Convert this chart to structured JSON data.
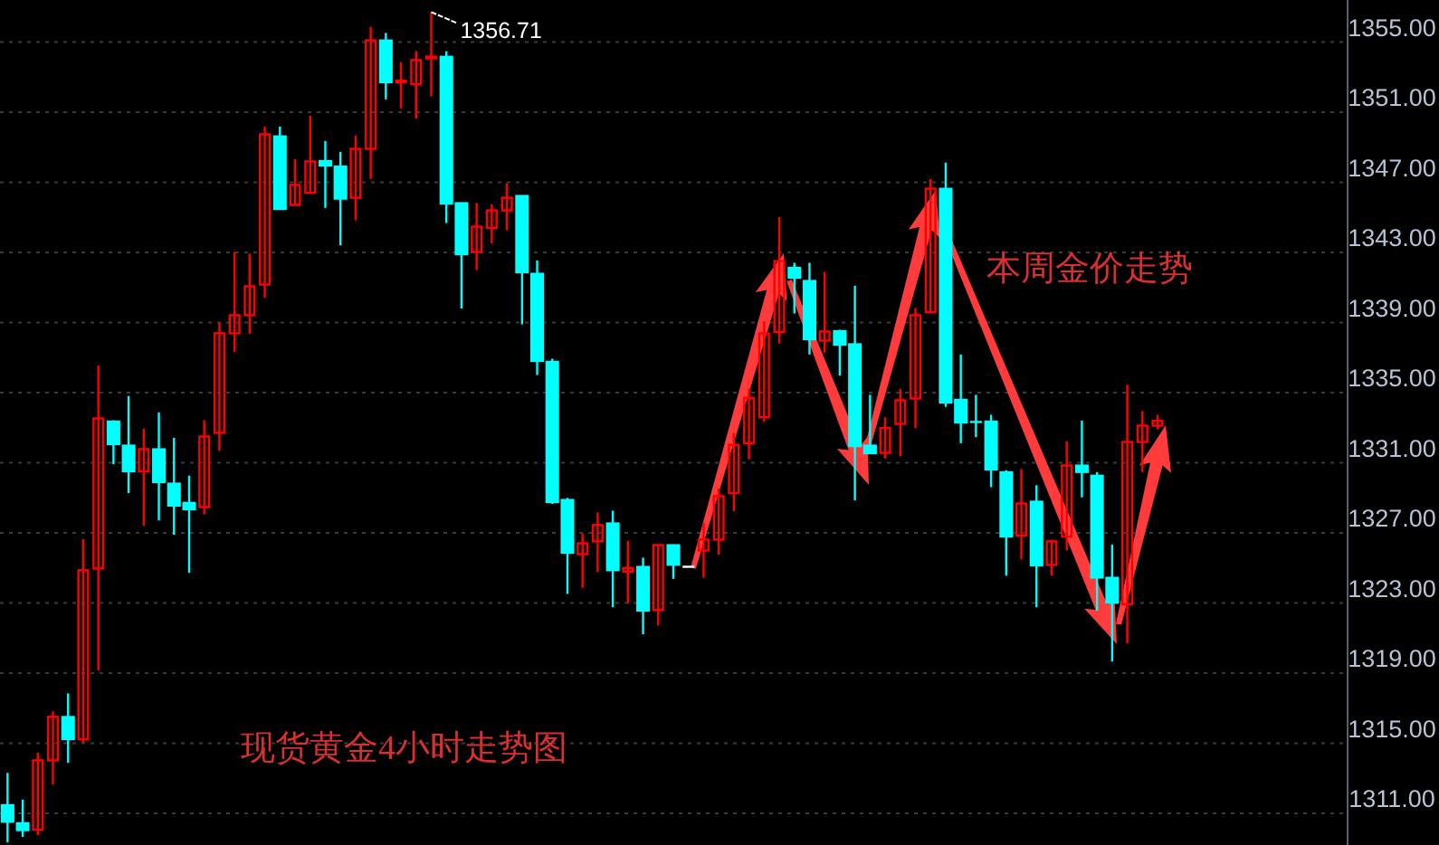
{
  "chart_data": {
    "type": "candlestick",
    "categories": [
      null,
      null,
      null,
      null,
      null,
      null,
      null,
      null,
      null,
      null,
      null,
      null,
      null,
      null,
      null,
      null,
      null,
      null,
      null,
      null,
      null,
      null,
      null,
      null,
      null,
      null,
      null,
      null,
      null,
      null,
      null,
      null,
      null,
      null,
      null,
      null,
      null,
      null,
      null,
      null,
      null,
      null,
      null,
      null,
      null,
      null,
      null,
      null,
      null,
      null,
      null,
      null,
      null,
      null,
      null,
      null,
      null,
      null,
      null,
      null,
      null,
      null,
      null,
      null,
      null,
      null,
      null,
      null,
      null,
      null,
      null,
      null,
      null,
      null,
      null,
      null,
      null,
      null,
      null,
      null,
      null,
      null,
      null,
      null,
      null,
      null,
      null,
      null,
      null
    ],
    "ohlc": [
      [
        1311.48,
        1313.31,
        1309.35,
        1310.52
      ],
      [
        1310.45,
        1311.79,
        1309.66,
        1310.04
      ],
      [
        1310.07,
        1314.48,
        1309.76,
        1314.03
      ],
      [
        1314.03,
        1316.82,
        1312.65,
        1316.51
      ],
      [
        1316.51,
        1317.85,
        1313.89,
        1315.23
      ],
      [
        1315.23,
        1326.65,
        1315.03,
        1324.87
      ],
      [
        1324.97,
        1336.56,
        1319.16,
        1333.53
      ],
      [
        1333.36,
        1333.43,
        1330.92,
        1332.06
      ],
      [
        1331.99,
        1334.81,
        1329.27,
        1330.51
      ],
      [
        1330.51,
        1332.95,
        1327.41,
        1331.78
      ],
      [
        1331.78,
        1333.88,
        1327.72,
        1329.89
      ],
      [
        1329.82,
        1332.43,
        1326.9,
        1328.55
      ],
      [
        1328.72,
        1330.27,
        1324.73,
        1328.34
      ],
      [
        1328.48,
        1333.43,
        1328.06,
        1332.5
      ],
      [
        1332.71,
        1339.0,
        1331.68,
        1338.39
      ],
      [
        1338.39,
        1343.03,
        1337.32,
        1339.42
      ],
      [
        1339.42,
        1342.93,
        1338.35,
        1341.07
      ],
      [
        1341.17,
        1350.18,
        1340.41,
        1349.74
      ],
      [
        1349.63,
        1350.18,
        1345.47,
        1345.47
      ],
      [
        1345.71,
        1348.33,
        1345.71,
        1346.85
      ],
      [
        1346.4,
        1350.8,
        1346.4,
        1348.19
      ],
      [
        1348.22,
        1349.36,
        1345.54,
        1347.95
      ],
      [
        1347.91,
        1348.74,
        1343.41,
        1346.06
      ],
      [
        1346.12,
        1349.67,
        1344.85,
        1348.91
      ],
      [
        1348.91,
        1355.86,
        1347.19,
        1355.1
      ],
      [
        1355.1,
        1355.52,
        1351.73,
        1352.7
      ],
      [
        1352.7,
        1353.86,
        1351.22,
        1352.8
      ],
      [
        1352.59,
        1354.48,
        1350.63,
        1353.97
      ],
      [
        1354.07,
        1356.71,
        1351.9,
        1354.17
      ],
      [
        1354.17,
        1354.48,
        1344.68,
        1345.78
      ],
      [
        1345.82,
        1345.82,
        1339.8,
        1342.89
      ],
      [
        1343.03,
        1345.82,
        1342.0,
        1344.47
      ],
      [
        1344.4,
        1345.75,
        1343.51,
        1345.4
      ],
      [
        1345.4,
        1346.95,
        1344.27,
        1346.12
      ],
      [
        1346.23,
        1346.23,
        1338.9,
        1341.86
      ],
      [
        1341.79,
        1342.55,
        1336.01,
        1336.8
      ],
      [
        1336.77,
        1336.94,
        1328.65,
        1328.75
      ],
      [
        1328.89,
        1329.0,
        1323.52,
        1325.86
      ],
      [
        1325.79,
        1326.96,
        1323.87,
        1326.41
      ],
      [
        1326.52,
        1328.17,
        1324.76,
        1327.45
      ],
      [
        1327.55,
        1328.27,
        1322.77,
        1324.87
      ],
      [
        1324.8,
        1326.55,
        1323.01,
        1325.0
      ],
      [
        1325.07,
        1325.59,
        1321.22,
        1322.56
      ],
      [
        1322.6,
        1326.31,
        1321.74,
        1326.31
      ],
      [
        1326.31,
        1326.31,
        1324.38,
        1325.18
      ],
      [
        1325.07,
        1325.07,
        1325.07,
        1325.07
      ],
      [
        1326.0,
        1327.58,
        1324.45,
        1326.62
      ],
      [
        1326.62,
        1329.54,
        1325.76,
        1329.1
      ],
      [
        1329.27,
        1332.71,
        1328.24,
        1332.02
      ],
      [
        1332.12,
        1335.25,
        1331.2,
        1334.7
      ],
      [
        1333.6,
        1339.07,
        1333.33,
        1338.38
      ],
      [
        1338.45,
        1345.02,
        1337.8,
        1342.51
      ],
      [
        1342.13,
        1342.41,
        1339.52,
        1341.55
      ],
      [
        1341.38,
        1342.41,
        1337.18,
        1338.04
      ],
      [
        1337.97,
        1341.89,
        1337.28,
        1338.49
      ],
      [
        1338.52,
        1338.59,
        1335.98,
        1337.73
      ],
      [
        1337.77,
        1341.1,
        1328.86,
        1331.95
      ],
      [
        1331.99,
        1334.88,
        1331.54,
        1331.54
      ],
      [
        1331.57,
        1333.6,
        1331.23,
        1332.98
      ],
      [
        1333.22,
        1335.22,
        1331.37,
        1334.57
      ],
      [
        1334.67,
        1339.83,
        1332.98,
        1339.42
      ],
      [
        1339.59,
        1347.19,
        1339.52,
        1346.64
      ],
      [
        1346.64,
        1348.12,
        1334.19,
        1334.43
      ],
      [
        1334.6,
        1337.18,
        1332.12,
        1333.29
      ],
      [
        1333.33,
        1334.88,
        1332.47,
        1333.33
      ],
      [
        1333.36,
        1333.74,
        1329.61,
        1330.61
      ],
      [
        1330.47,
        1330.58,
        1324.56,
        1326.79
      ],
      [
        1326.86,
        1330.64,
        1325.49,
        1328.68
      ],
      [
        1328.79,
        1329.72,
        1322.77,
        1325.14
      ],
      [
        1325.18,
        1326.62,
        1324.56,
        1326.52
      ],
      [
        1326.79,
        1332.23,
        1326.0,
        1330.85
      ],
      [
        1330.85,
        1333.4,
        1329.03,
        1330.47
      ],
      [
        1330.27,
        1330.47,
        1322.56,
        1324.45
      ],
      [
        1324.45,
        1326.34,
        1319.67,
        1323.01
      ],
      [
        1322.94,
        1335.46,
        1320.7,
        1332.19
      ],
      [
        1332.19,
        1333.95,
        1330.47,
        1333.12
      ],
      [
        1333.12,
        1333.74,
        1332.91,
        1333.4
      ],
      null,
      null,
      null,
      null,
      null,
      null,
      null,
      null,
      null,
      null,
      null,
      null
    ],
    "colors": [
      "#00ffff",
      "#00ffff",
      "#ff0000",
      "#ff0000",
      "#00ffff",
      "#ff0000",
      "#ff0000",
      "#00ffff",
      "#00ffff",
      "#ff0000",
      "#00ffff",
      "#00ffff",
      "#00ffff",
      "#ff0000",
      "#ff0000",
      "#ff0000",
      "#ff0000",
      "#ff0000",
      "#00ffff",
      "#ff0000",
      "#ff0000",
      "#00ffff",
      "#00ffff",
      "#ff0000",
      "#ff0000",
      "#00ffff",
      "#ff0000",
      "#ff0000",
      "#ff0000",
      "#00ffff",
      "#00ffff",
      "#ff0000",
      "#ff0000",
      "#ff0000",
      "#00ffff",
      "#00ffff",
      "#00ffff",
      "#00ffff",
      "#ff0000",
      "#ff0000",
      "#00ffff",
      "#ff0000",
      "#00ffff",
      "#ff0000",
      "#00ffff",
      "#ffffff",
      "#ff0000",
      "#ff0000",
      "#ff0000",
      "#ff0000",
      "#ff0000",
      "#ff0000",
      "#00ffff",
      "#00ffff",
      "#ff0000",
      "#00ffff",
      "#00ffff",
      "#00ffff",
      "#ff0000",
      "#ff0000",
      "#ff0000",
      "#ff0000",
      "#00ffff",
      "#00ffff",
      "#00ffff",
      "#00ffff",
      "#00ffff",
      "#ff0000",
      "#00ffff",
      "#ff0000",
      "#ff0000",
      "#00ffff",
      "#00ffff",
      "#00ffff",
      "#ff0000",
      "#ff0000",
      "#ff0000",
      null,
      null,
      null,
      null,
      null,
      null,
      null,
      null,
      null,
      null,
      null,
      null
    ],
    "ylim": [
      1309.2,
      1357.4
    ],
    "yticks": [
      {
        "value": 1311,
        "label": "1311.00"
      },
      {
        "value": 1315,
        "label": "1315.00"
      },
      {
        "value": 1319,
        "label": "1319.00"
      },
      {
        "value": 1323,
        "label": "1323.00"
      },
      {
        "value": 1327,
        "label": "1327.00"
      },
      {
        "value": 1331,
        "label": "1331.00"
      },
      {
        "value": 1335,
        "label": "1335.00"
      },
      {
        "value": 1339,
        "label": "1339.00"
      },
      {
        "value": 1343,
        "label": "1343.00"
      },
      {
        "value": 1347,
        "label": "1347.00"
      },
      {
        "value": 1351,
        "label": "1351.00"
      },
      {
        "value": 1355,
        "label": "1355.00"
      }
    ],
    "grid": "y",
    "tick_labels": "y",
    "annotations": [
      "现货黄金4小时走势图",
      "本周金价走势",
      "1356.71"
    ]
  }
}
